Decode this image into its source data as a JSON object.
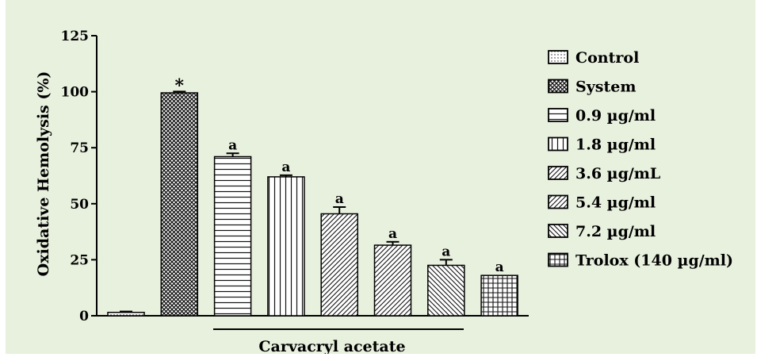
{
  "chart_data": {
    "type": "bar",
    "ylabel": "Oxidative Hemolysis (%)",
    "xlabel": "Carvacryl acetate",
    "ylim": [
      0,
      125
    ],
    "yticks": [
      0,
      25,
      50,
      75,
      100,
      125
    ],
    "grid": false,
    "legend_position": "right",
    "categories": [
      "Control",
      "System",
      "0.9 µg/ml",
      "1.8 µg/ml",
      "3.6 µg/mL",
      "5.4 µg/ml",
      "7.2 µg/ml",
      "Trolox (140 µg/ml)"
    ],
    "values": [
      1.5,
      99.5,
      71,
      62,
      45.5,
      31.5,
      22.5,
      18
    ],
    "errors": [
      0.4,
      0.6,
      1.5,
      0.7,
      3.0,
      1.5,
      2.5,
      0.0
    ],
    "annotations": [
      "",
      "*",
      "a",
      "a",
      "a",
      "a",
      "a",
      "a"
    ],
    "patterns": [
      "dots",
      "crosshatch",
      "horizontal",
      "vertical",
      "diagonal",
      "diagonal",
      "diagonal-reverse",
      "grid"
    ]
  }
}
